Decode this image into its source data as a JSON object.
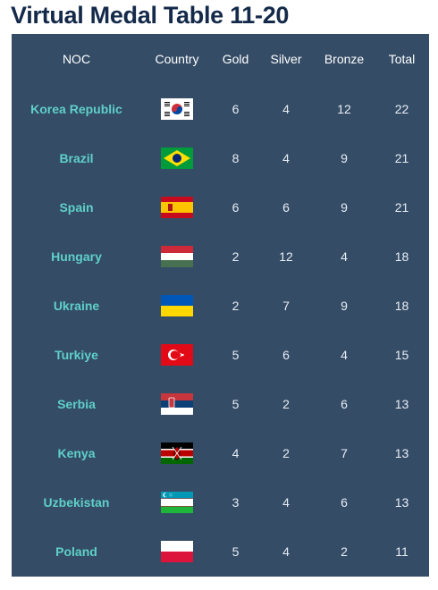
{
  "title": "Virtual Medal Table 11-20",
  "headers": {
    "noc": "NOC",
    "country": "Country",
    "gold": "Gold",
    "silver": "Silver",
    "bronze": "Bronze",
    "total": "Total"
  },
  "rows": [
    {
      "noc": "Korea Republic",
      "flag": "korea-flag-icon",
      "gold": "6",
      "silver": "4",
      "bronze": "12",
      "total": "22"
    },
    {
      "noc": "Brazil",
      "flag": "brazil-flag-icon",
      "gold": "8",
      "silver": "4",
      "bronze": "9",
      "total": "21"
    },
    {
      "noc": "Spain",
      "flag": "spain-flag-icon",
      "gold": "6",
      "silver": "6",
      "bronze": "9",
      "total": "21"
    },
    {
      "noc": "Hungary",
      "flag": "hungary-flag-icon",
      "gold": "2",
      "silver": "12",
      "bronze": "4",
      "total": "18"
    },
    {
      "noc": "Ukraine",
      "flag": "ukraine-flag-icon",
      "gold": "2",
      "silver": "7",
      "bronze": "9",
      "total": "18"
    },
    {
      "noc": "Turkiye",
      "flag": "turkiye-flag-icon",
      "gold": "5",
      "silver": "6",
      "bronze": "4",
      "total": "15"
    },
    {
      "noc": "Serbia",
      "flag": "serbia-flag-icon",
      "gold": "5",
      "silver": "2",
      "bronze": "6",
      "total": "13"
    },
    {
      "noc": "Kenya",
      "flag": "kenya-flag-icon",
      "gold": "4",
      "silver": "2",
      "bronze": "7",
      "total": "13"
    },
    {
      "noc": "Uzbekistan",
      "flag": "uzbekistan-flag-icon",
      "gold": "3",
      "silver": "4",
      "bronze": "6",
      "total": "13"
    },
    {
      "noc": "Poland",
      "flag": "poland-flag-icon",
      "gold": "5",
      "silver": "4",
      "bronze": "2",
      "total": "11"
    }
  ],
  "colors": {
    "panel": "#344c66",
    "noc_text": "#5fd0c8",
    "title": "#142a4a"
  }
}
